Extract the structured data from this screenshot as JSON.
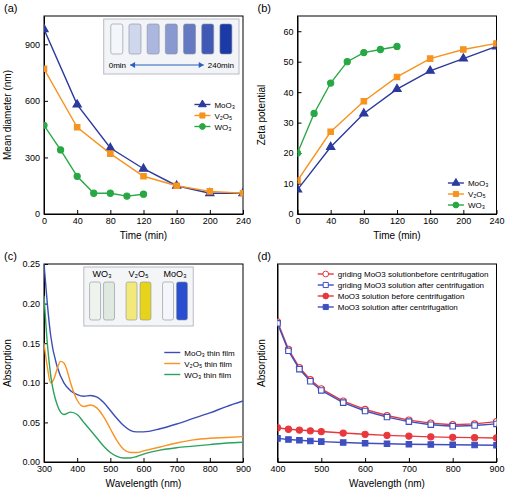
{
  "chart_data": [
    {
      "type": "line",
      "title": "(a)",
      "x_label": "Time (min)",
      "y_label": "Mean diameter (nm)",
      "xlim": [
        0,
        240
      ],
      "xticks": [
        0,
        40,
        80,
        120,
        160,
        200,
        240
      ],
      "ylim": [
        0,
        1050
      ],
      "yticks": [
        0,
        300,
        600,
        900
      ],
      "legend": "right",
      "annotations": [
        "0min",
        "240min"
      ],
      "series": [
        {
          "name": "MoO₃",
          "color": "#2b3a9c",
          "marker": "triangle",
          "x": [
            0,
            40,
            80,
            120,
            160,
            200,
            240
          ],
          "values": [
            980,
            580,
            350,
            240,
            150,
            110,
            110
          ]
        },
        {
          "name": "V₂O₅",
          "color": "#f7931e",
          "marker": "square",
          "x": [
            0,
            40,
            80,
            120,
            160,
            200,
            240
          ],
          "values": [
            770,
            460,
            320,
            200,
            150,
            120,
            110
          ]
        },
        {
          "name": "WO₃",
          "color": "#27a844",
          "marker": "circle",
          "x": [
            0,
            20,
            40,
            60,
            80,
            100,
            120
          ],
          "values": [
            470,
            340,
            200,
            110,
            110,
            95,
            105
          ]
        }
      ]
    },
    {
      "type": "line",
      "title": "(b)",
      "x_label": "Time (min)",
      "y_label": "Zeta potential",
      "xlim": [
        0,
        240
      ],
      "xticks": [
        0,
        40,
        80,
        120,
        160,
        200,
        240
      ],
      "ylim": [
        0,
        65
      ],
      "yticks": [
        0,
        10,
        20,
        30,
        40,
        50,
        60
      ],
      "legend": "lower right",
      "series": [
        {
          "name": "MoO₃",
          "color": "#2b3a9c",
          "marker": "triangle",
          "x": [
            0,
            40,
            80,
            120,
            160,
            200,
            240
          ],
          "values": [
            8,
            22,
            33,
            41,
            47,
            51,
            55
          ]
        },
        {
          "name": "V₂O₅",
          "color": "#f7931e",
          "marker": "square",
          "x": [
            0,
            40,
            80,
            120,
            160,
            200,
            240
          ],
          "values": [
            11,
            27,
            37,
            45,
            51,
            54,
            56
          ]
        },
        {
          "name": "WO₃",
          "color": "#27a844",
          "marker": "circle",
          "x": [
            0,
            20,
            40,
            60,
            80,
            100,
            120
          ],
          "values": [
            20,
            33,
            43,
            50,
            53,
            54,
            55
          ]
        }
      ]
    },
    {
      "type": "line",
      "title": "(c)",
      "x_label": "Wavelength (nm)",
      "y_label": "Absorption",
      "xlim": [
        300,
        900
      ],
      "xticks": [
        300,
        400,
        500,
        600,
        700,
        800,
        900
      ],
      "ylim": [
        0,
        0.25
      ],
      "yticks": [
        {
          "value": 0,
          "label": "0.00"
        },
        0.05,
        {
          "value": 0.1,
          "label": "0.10"
        },
        0.15,
        {
          "value": 0.2,
          "label": "0.20"
        },
        0.25
      ],
      "legend": "right",
      "annotations": [
        "WO₃",
        "V₂O₅",
        "MoO₃"
      ],
      "series": [
        {
          "name": "MoO₃ thin film",
          "color": "#3d4db7",
          "x": [
            300,
            310,
            320,
            340,
            360,
            380,
            400,
            420,
            440,
            460,
            480,
            500,
            520,
            540,
            560,
            580,
            600,
            650,
            700,
            750,
            800,
            850,
            900
          ],
          "values": [
            0.25,
            0.2,
            0.16,
            0.12,
            0.1,
            0.09,
            0.085,
            0.083,
            0.084,
            0.082,
            0.075,
            0.065,
            0.055,
            0.046,
            0.04,
            0.038,
            0.038,
            0.042,
            0.048,
            0.055,
            0.062,
            0.07,
            0.077
          ]
        },
        {
          "name": "V₂O₅ thin film",
          "color": "#f7931e",
          "x": [
            300,
            310,
            320,
            330,
            340,
            350,
            360,
            370,
            380,
            400,
            420,
            440,
            460,
            480,
            500,
            520,
            540,
            560,
            580,
            600,
            650,
            700,
            750,
            800,
            850,
            900
          ],
          "values": [
            0.15,
            0.12,
            0.1,
            0.105,
            0.118,
            0.127,
            0.125,
            0.115,
            0.1,
            0.078,
            0.07,
            0.072,
            0.068,
            0.057,
            0.042,
            0.027,
            0.016,
            0.012,
            0.012,
            0.014,
            0.019,
            0.024,
            0.028,
            0.03,
            0.031,
            0.032
          ]
        },
        {
          "name": "WO₃ thin film",
          "color": "#2ca25f",
          "x": [
            300,
            310,
            320,
            340,
            360,
            380,
            400,
            420,
            440,
            460,
            480,
            500,
            520,
            540,
            560,
            580,
            600,
            650,
            700,
            750,
            800,
            850,
            900
          ],
          "values": [
            0.21,
            0.15,
            0.11,
            0.072,
            0.06,
            0.063,
            0.06,
            0.05,
            0.04,
            0.03,
            0.02,
            0.012,
            0.007,
            0.005,
            0.005,
            0.007,
            0.01,
            0.015,
            0.018,
            0.02,
            0.022,
            0.024,
            0.025
          ]
        }
      ]
    },
    {
      "type": "line",
      "title": "(d)",
      "x_label": "Wavelength (nm)",
      "y_label": "Absorption",
      "xlim": [
        400,
        900
      ],
      "xticks": [
        400,
        500,
        600,
        700,
        800,
        900
      ],
      "ylim": [
        0,
        1.3
      ],
      "tick_labels": "x",
      "legend": "upper right",
      "series": [
        {
          "name": "griding MoO3 solutionbefore centrifugation",
          "color": "#e8383d",
          "marker": "open-circle",
          "x": [
            400,
            425,
            450,
            475,
            500,
            550,
            600,
            650,
            700,
            750,
            800,
            850,
            900
          ],
          "values": [
            0.92,
            0.74,
            0.62,
            0.54,
            0.48,
            0.4,
            0.345,
            0.305,
            0.275,
            0.255,
            0.245,
            0.25,
            0.265
          ]
        },
        {
          "name": "griding MoO3 solution after centrifugation",
          "color": "#3f4fc0",
          "marker": "open-square",
          "x": [
            400,
            425,
            450,
            475,
            500,
            550,
            600,
            650,
            700,
            750,
            800,
            850,
            900
          ],
          "values": [
            0.91,
            0.73,
            0.61,
            0.53,
            0.47,
            0.39,
            0.335,
            0.295,
            0.265,
            0.245,
            0.235,
            0.24,
            0.25
          ]
        },
        {
          "name": "MoO3 solution before centrifugation",
          "color": "#e8383d",
          "marker": "circle",
          "x": [
            400,
            425,
            450,
            475,
            500,
            550,
            600,
            650,
            700,
            750,
            800,
            850,
            900
          ],
          "values": [
            0.225,
            0.215,
            0.21,
            0.205,
            0.2,
            0.19,
            0.182,
            0.175,
            0.17,
            0.165,
            0.162,
            0.16,
            0.158
          ]
        },
        {
          "name": "MoO3 solution after centrifugation",
          "color": "#3f4fc0",
          "marker": "square",
          "x": [
            400,
            425,
            450,
            475,
            500,
            550,
            600,
            650,
            700,
            750,
            800,
            850,
            900
          ],
          "values": [
            0.155,
            0.148,
            0.143,
            0.138,
            0.134,
            0.128,
            0.123,
            0.12,
            0.117,
            0.115,
            0.113,
            0.112,
            0.11
          ]
        }
      ]
    }
  ]
}
